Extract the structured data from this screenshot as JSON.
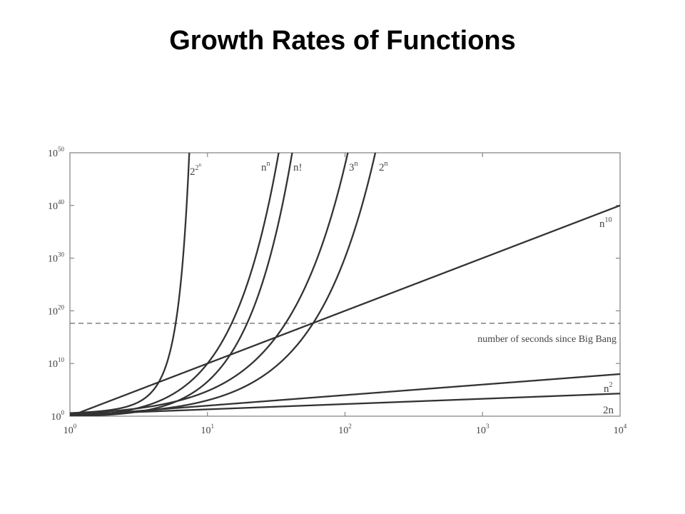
{
  "page": {
    "title": "Growth Rates of Functions"
  },
  "chart_data": {
    "type": "line",
    "title": "Growth Rates of Functions",
    "xlabel": "",
    "ylabel": "",
    "x_scale": "log10",
    "y_scale": "log10",
    "xlim": [
      1,
      10000
    ],
    "ylim": [
      1,
      1e+50
    ],
    "x_ticks": [
      {
        "base": "10",
        "exp": "0",
        "value": 1
      },
      {
        "base": "10",
        "exp": "1",
        "value": 10
      },
      {
        "base": "10",
        "exp": "2",
        "value": 100
      },
      {
        "base": "10",
        "exp": "3",
        "value": 1000
      },
      {
        "base": "10",
        "exp": "4",
        "value": 10000
      }
    ],
    "y_ticks": [
      {
        "base": "10",
        "exp": "0",
        "value": 1
      },
      {
        "base": "10",
        "exp": "10",
        "value": 10000000000.0
      },
      {
        "base": "10",
        "exp": "20",
        "value": 1e+20
      },
      {
        "base": "10",
        "exp": "30",
        "value": 1e+30
      },
      {
        "base": "10",
        "exp": "40",
        "value": 1e+40
      },
      {
        "base": "10",
        "exp": "50",
        "value": 1e+50
      }
    ],
    "grid": false,
    "line_color": "#333333",
    "reference_line": {
      "label": "number of seconds since Big Bang",
      "y": 4.3e+17,
      "style": "dashed"
    },
    "series": [
      {
        "id": "double-exp",
        "label_base": "2",
        "label_exp": "2",
        "label_exp2": "n",
        "function": "2^(2^n)"
      },
      {
        "id": "n-pow-n",
        "label_base": "n",
        "label_exp": "n",
        "function": "n^n"
      },
      {
        "id": "factorial",
        "label_base": "n!",
        "label_exp": "",
        "function": "n!"
      },
      {
        "id": "three-pow-n",
        "label_base": "3",
        "label_exp": "n",
        "function": "3^n"
      },
      {
        "id": "two-pow-n",
        "label_base": "2",
        "label_exp": "n",
        "function": "2^n"
      },
      {
        "id": "n-pow-10",
        "label_base": "n",
        "label_exp": "10",
        "function": "n^10"
      },
      {
        "id": "n-squared",
        "label_base": "n",
        "label_exp": "2",
        "function": "n^2"
      },
      {
        "id": "two-n",
        "label_base": "2n",
        "label_exp": "",
        "function": "2n"
      }
    ]
  }
}
